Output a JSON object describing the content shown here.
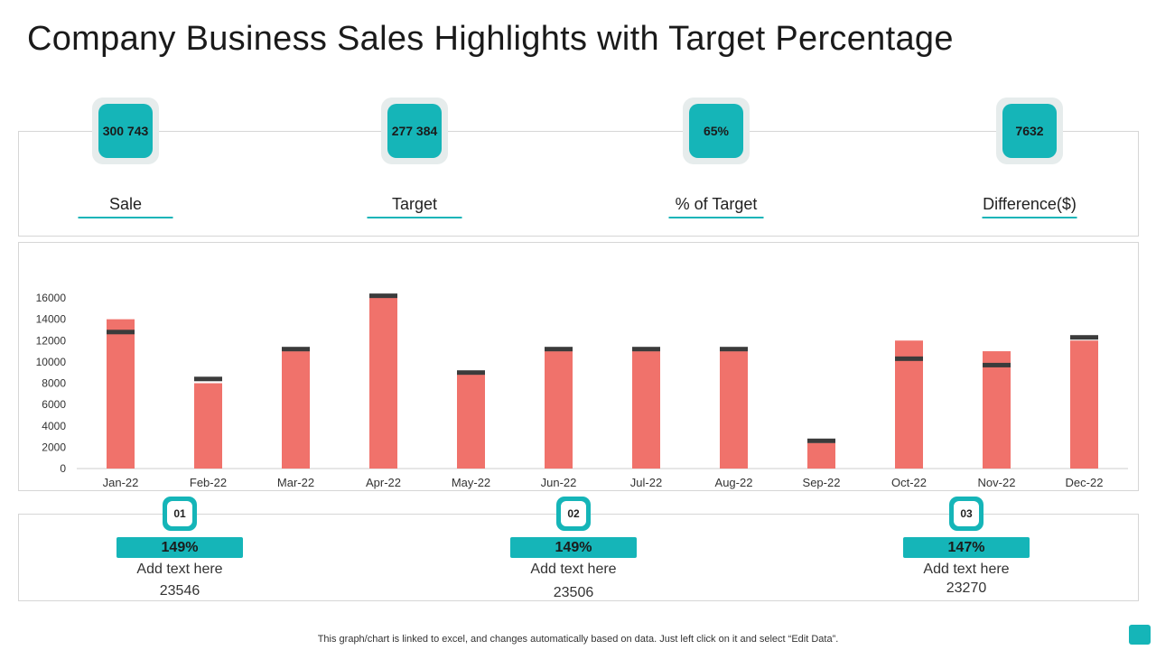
{
  "title": "Company Business Sales Highlights with Target Percentage",
  "kpis": [
    {
      "value": "300 743",
      "label": "Sale"
    },
    {
      "value": "277 384",
      "label": "Target"
    },
    {
      "value": "65%",
      "label": "% of Target"
    },
    {
      "value": "7632",
      "label": "Difference($)"
    }
  ],
  "chart_data": {
    "type": "bar",
    "categories": [
      "Jan-22",
      "Feb-22",
      "Mar-22",
      "Apr-22",
      "May-22",
      "Jun-22",
      "Jul-22",
      "Aug-22",
      "Sep-22",
      "Oct-22",
      "Nov-22",
      "Dec-22"
    ],
    "series": [
      {
        "values": [
          14000,
          8000,
          11000,
          16000,
          8800,
          11000,
          11000,
          11000,
          2400,
          12000,
          11000,
          12000
        ]
      },
      {
        "values": [
          12800,
          8400,
          11200,
          16200,
          9000,
          11200,
          11200,
          11200,
          2600,
          10300,
          9700,
          12300
        ]
      }
    ],
    "yticks": [
      0,
      2000,
      4000,
      6000,
      8000,
      10000,
      12000,
      14000,
      16000
    ],
    "ylim": [
      0,
      16000
    ],
    "colors": {
      "bar": "#f0726b",
      "target": "#3b3b3b",
      "axis": "#cccccc"
    }
  },
  "cards": [
    {
      "num": "01",
      "percent": "149%",
      "text": "Add text here",
      "value": "23546"
    },
    {
      "num": "02",
      "percent": "149%",
      "text": "Add text here",
      "value": "23506"
    },
    {
      "num": "03",
      "percent": "147%",
      "text": "Add text here",
      "value": "23270"
    }
  ],
  "footnote": "This graph/chart is linked to excel,  and changes automatically based on data. Just left click on it and select “Edit Data”.",
  "colors": {
    "accent": "#15b5b8"
  }
}
